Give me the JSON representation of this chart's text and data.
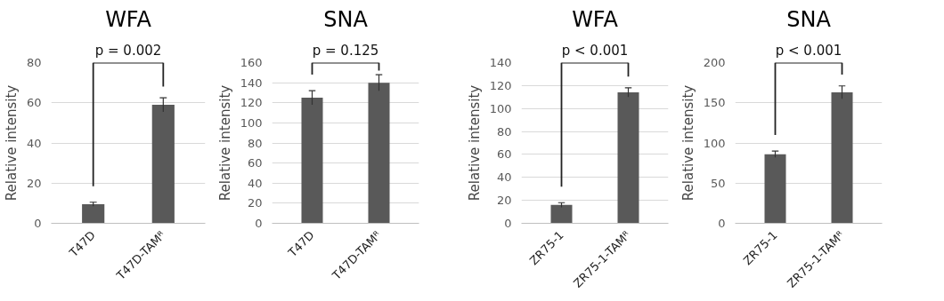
{
  "chart_data": [
    {
      "type": "bar",
      "title": "WFA",
      "ylabel": "Relative intensity",
      "categories": [
        "T47D",
        "T47D-TAMᴿ"
      ],
      "values": [
        9.5,
        59
      ],
      "errors": [
        1,
        3.5
      ],
      "color": "#595959",
      "ylim": [
        0,
        80
      ],
      "yticks": [
        0,
        20,
        40,
        60,
        80
      ],
      "grid": "y",
      "annotations": [
        "p = 0.002"
      ]
    },
    {
      "type": "bar",
      "title": "SNA",
      "ylabel": "Relative intensity",
      "categories": [
        "T47D",
        "T47D-TAMᴿ"
      ],
      "values": [
        125,
        140
      ],
      "errors": [
        7,
        8
      ],
      "color": "#595959",
      "ylim": [
        0,
        160
      ],
      "yticks": [
        0,
        20,
        40,
        60,
        80,
        100,
        120,
        140,
        160
      ],
      "grid": "y",
      "annotations": [
        "p = 0.125"
      ]
    },
    {
      "type": "bar",
      "title": "WFA",
      "ylabel": "Relative intensity",
      "categories": [
        "ZR75-1",
        "ZR75-1-TAMᴿ"
      ],
      "values": [
        16,
        114
      ],
      "errors": [
        2,
        4
      ],
      "color": "#595959",
      "ylim": [
        0,
        140
      ],
      "yticks": [
        0,
        20,
        40,
        60,
        80,
        100,
        120,
        140
      ],
      "grid": "y",
      "annotations": [
        "p < 0.001"
      ]
    },
    {
      "type": "bar",
      "title": "SNA",
      "ylabel": "Relative intensity",
      "categories": [
        "ZR75-1",
        "ZR75-1-TAMᴿ"
      ],
      "values": [
        86,
        163
      ],
      "errors": [
        4,
        8
      ],
      "color": "#595959",
      "ylim": [
        0,
        200
      ],
      "yticks": [
        0,
        50,
        100,
        150,
        200
      ],
      "grid": "y",
      "annotations": [
        "p < 0.001"
      ]
    }
  ]
}
